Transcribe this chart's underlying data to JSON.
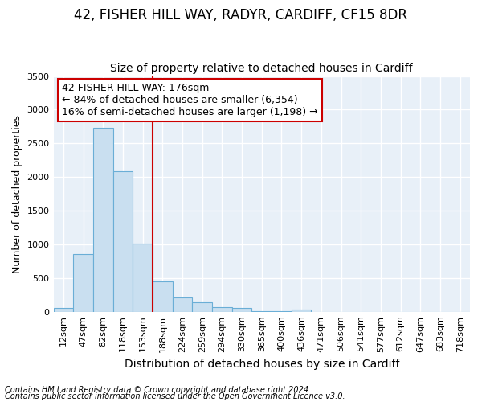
{
  "title1": "42, FISHER HILL WAY, RADYR, CARDIFF, CF15 8DR",
  "title2": "Size of property relative to detached houses in Cardiff",
  "xlabel": "Distribution of detached houses by size in Cardiff",
  "ylabel": "Number of detached properties",
  "bar_labels": [
    "12sqm",
    "47sqm",
    "82sqm",
    "118sqm",
    "153sqm",
    "188sqm",
    "224sqm",
    "259sqm",
    "294sqm",
    "330sqm",
    "365sqm",
    "400sqm",
    "436sqm",
    "471sqm",
    "506sqm",
    "541sqm",
    "577sqm",
    "612sqm",
    "647sqm",
    "683sqm",
    "718sqm"
  ],
  "bar_values": [
    55,
    850,
    2730,
    2080,
    1010,
    455,
    210,
    145,
    70,
    50,
    5,
    5,
    30,
    0,
    0,
    0,
    0,
    0,
    0,
    0,
    0
  ],
  "bar_color": "#c9dff0",
  "bar_edge_color": "#6aaed6",
  "bar_edge_width": 0.8,
  "vline_x_index": 4.5,
  "vline_color": "#cc0000",
  "vline_linewidth": 1.5,
  "ylim": [
    0,
    3500
  ],
  "yticks": [
    0,
    500,
    1000,
    1500,
    2000,
    2500,
    3000,
    3500
  ],
  "annotation_title": "42 FISHER HILL WAY: 176sqm",
  "annotation_line1": "← 84% of detached houses are smaller (6,354)",
  "annotation_line2": "16% of semi-detached houses are larger (1,198) →",
  "annotation_box_facecolor": "#ffffff",
  "annotation_box_edgecolor": "#cc0000",
  "footer1": "Contains HM Land Registry data © Crown copyright and database right 2024.",
  "footer2": "Contains public sector information licensed under the Open Government Licence v3.0.",
  "fig_facecolor": "#ffffff",
  "plot_facecolor": "#e8f0f8",
  "title1_fontsize": 12,
  "title2_fontsize": 10,
  "xlabel_fontsize": 10,
  "ylabel_fontsize": 9,
  "tick_fontsize": 8,
  "annotation_fontsize": 9,
  "footer_fontsize": 7
}
